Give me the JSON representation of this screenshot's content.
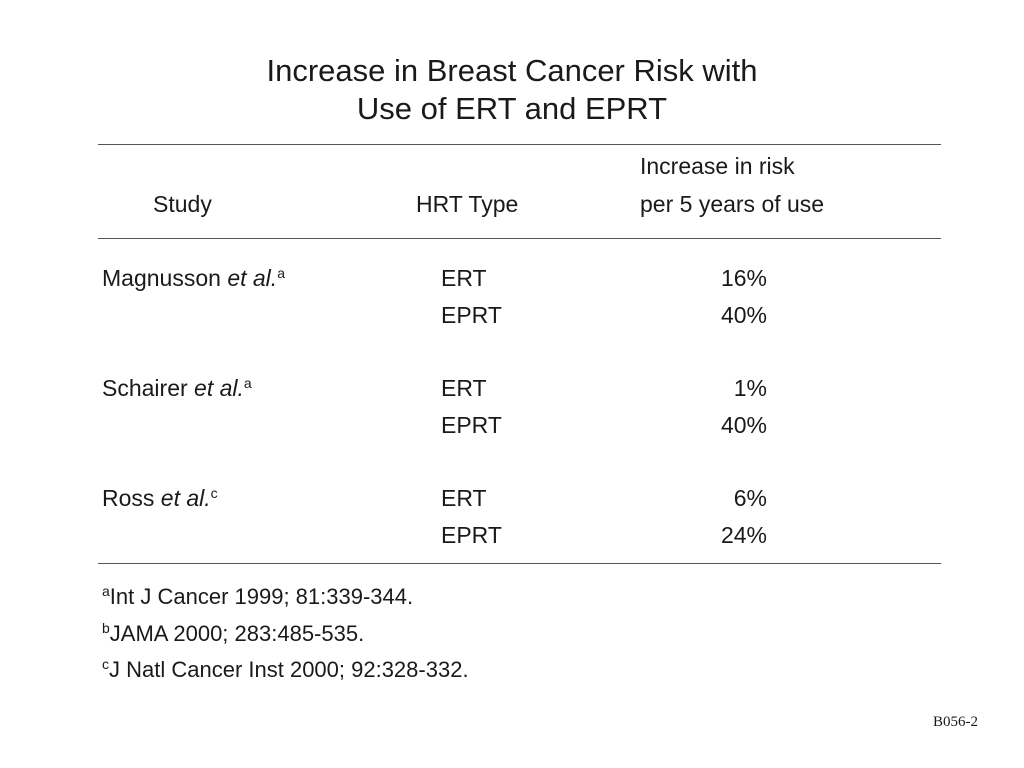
{
  "title": {
    "line1": "Increase in Breast Cancer Risk with",
    "line2": "Use of ERT and EPRT"
  },
  "table": {
    "headers": {
      "study": "Study",
      "hrt_type": "HRT Type",
      "increase_line1": "Increase in risk",
      "increase_line2": "per 5 years of use"
    },
    "rows": [
      {
        "study_name": "Magnusson",
        "study_etal": "et al.",
        "study_ref": "a",
        "type": "ERT",
        "increase": "16%"
      },
      {
        "study_name": "",
        "study_etal": "",
        "study_ref": "",
        "type": "EPRT",
        "increase": "40%"
      },
      {
        "study_name": "Schairer",
        "study_etal": "et al.",
        "study_ref": "a",
        "type": "ERT",
        "increase": "1%"
      },
      {
        "study_name": "",
        "study_etal": "",
        "study_ref": "",
        "type": "EPRT",
        "increase": "40%"
      },
      {
        "study_name": "Ross",
        "study_etal": "et al.",
        "study_ref": "c",
        "type": "ERT",
        "increase": "6%"
      },
      {
        "study_name": "",
        "study_etal": "",
        "study_ref": "",
        "type": "EPRT",
        "increase": "24%"
      }
    ]
  },
  "footnotes": [
    {
      "mark": "a",
      "text": "Int J Cancer 1999; 81:339-344."
    },
    {
      "mark": "b",
      "text": "JAMA 2000; 283:485-535."
    },
    {
      "mark": "c",
      "text": "J Natl Cancer Inst 2000; 92:328-332."
    }
  ],
  "slide_code": "B056-2"
}
